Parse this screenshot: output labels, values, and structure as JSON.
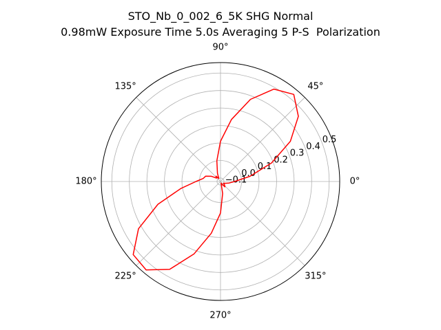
{
  "title": {
    "line1": "STO_Nb_0_002_6_5K SHG Normal",
    "line2": "0.98mW Exposure Time 5.0s Averaging 5 P-S  Polarization"
  },
  "chart_data": {
    "type": "line",
    "projection": "polar",
    "theta_unit": "degrees",
    "theta_tick_labels": [
      "0°",
      "45°",
      "90°",
      "135°",
      "180°",
      "225°",
      "270°",
      "315°"
    ],
    "theta_ticks": [
      0,
      45,
      90,
      135,
      180,
      225,
      270,
      315
    ],
    "r_tick_labels": [
      "−0.1",
      "0.0",
      "0.1",
      "0.2",
      "0.3",
      "0.4",
      "0.5"
    ],
    "r_ticks": [
      -0.1,
      0.0,
      0.1,
      0.2,
      0.3,
      0.4,
      0.5
    ],
    "rlim": [
      -0.12,
      0.56
    ],
    "r_label_angle": 22.5,
    "grid": true,
    "series": [
      {
        "color": "#ff0000",
        "theta": [
          0,
          10,
          20,
          30,
          40,
          50,
          60,
          70,
          80,
          90,
          100,
          110,
          120,
          130,
          140,
          150,
          160,
          170,
          180,
          190,
          200,
          210,
          220,
          230,
          240,
          250,
          260,
          270,
          280,
          290,
          300,
          310,
          320,
          330,
          340,
          350,
          360
        ],
        "r": [
          -0.04,
          0.05,
          0.19,
          0.34,
          0.46,
          0.53,
          0.49,
          0.38,
          0.24,
          0.11,
          0.0,
          -0.07,
          -0.1,
          -0.08,
          -0.09,
          -0.06,
          -0.03,
          -0.02,
          0.02,
          0.11,
          0.26,
          0.42,
          0.53,
          0.54,
          0.46,
          0.32,
          0.18,
          0.06,
          -0.05,
          -0.11,
          -0.1,
          -0.08,
          -0.09,
          -0.1,
          -0.09,
          -0.07,
          -0.04
        ]
      }
    ]
  }
}
